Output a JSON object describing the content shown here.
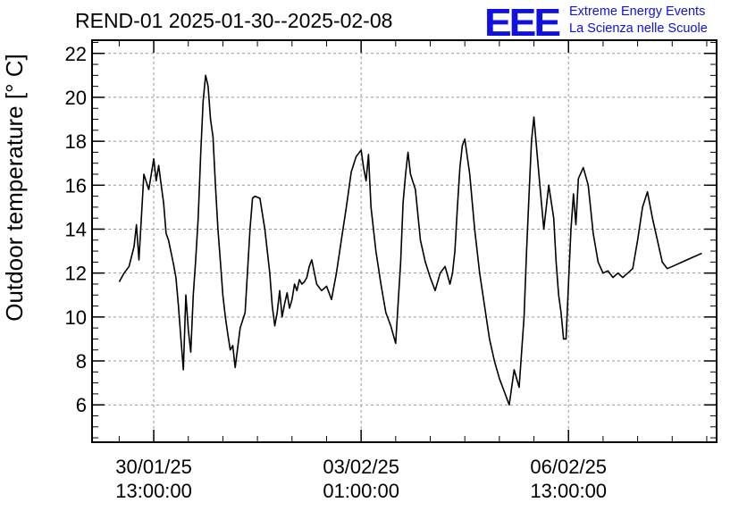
{
  "header": {
    "title": "REND-01 2025-01-30--2025-02-08",
    "logo_text": "EEE",
    "tagline_line1": "Extreme Energy Events",
    "tagline_line2": "La Scienza nelle Scuole"
  },
  "colors": {
    "line": "#000000",
    "grid": "#999999",
    "logo": "#1010e0"
  },
  "chart_data": {
    "type": "line",
    "title": "REND-01 2025-01-30--2025-02-08",
    "xlabel": "",
    "ylabel": "Outdoor temperature [° C]",
    "ylim": [
      4.3,
      22.6
    ],
    "xlim_hours": [
      -25,
      228
    ],
    "yticks": [
      6,
      8,
      10,
      12,
      14,
      16,
      18,
      20,
      22
    ],
    "ytick_labels": [
      "6",
      "8",
      "10",
      "12",
      "14",
      "16",
      "18",
      "20",
      "22"
    ],
    "xticks": [
      {
        "hour": 0,
        "date": "30/01/25",
        "time": "13:00:00"
      },
      {
        "hour": 84,
        "date": "03/02/25",
        "time": "01:00:00"
      },
      {
        "hour": 168,
        "date": "06/02/25",
        "time": "13:00:00"
      }
    ],
    "x_minor_step_hours": 14,
    "grid": true,
    "series": [
      {
        "x_hours": [
          -14,
          -12,
          -10,
          -8,
          -7,
          -6,
          -4,
          -2,
          0,
          1,
          2,
          3,
          4,
          5,
          6,
          8,
          9,
          10,
          11,
          12,
          13,
          14,
          15,
          16,
          17,
          18,
          19,
          20,
          21,
          22,
          23,
          24,
          25,
          26,
          27,
          28,
          29,
          30,
          31,
          32,
          33,
          35,
          37,
          39,
          40,
          41,
          43,
          45,
          47,
          48,
          49,
          50,
          51,
          52,
          53,
          54,
          55,
          56,
          57,
          58,
          59,
          60,
          61,
          62,
          63,
          64,
          66,
          68,
          70,
          72,
          74,
          76,
          78,
          80,
          82,
          84,
          85,
          86,
          87,
          88,
          90,
          92,
          94,
          96,
          98,
          100,
          101,
          102,
          103,
          104,
          106,
          108,
          110,
          112,
          114,
          116,
          118,
          120,
          121,
          122,
          123,
          124,
          125,
          126,
          128,
          130,
          132,
          134,
          136,
          138,
          140,
          142,
          144,
          146,
          148,
          150,
          151,
          152,
          153,
          154,
          156,
          158,
          160,
          162,
          163,
          164,
          165,
          166,
          167,
          168,
          169,
          170,
          171,
          172,
          174,
          176,
          178,
          180,
          182,
          184,
          186,
          188,
          190,
          192,
          194,
          196,
          198,
          200,
          202,
          204,
          206,
          208,
          210,
          212,
          214,
          216,
          218,
          220,
          222
        ],
        "values": [
          11.6,
          12.0,
          12.3,
          13.2,
          14.2,
          12.6,
          16.5,
          15.8,
          17.2,
          16.2,
          16.9,
          16.0,
          15.2,
          13.8,
          13.5,
          12.4,
          11.8,
          10.5,
          9.0,
          7.6,
          11.0,
          9.4,
          8.4,
          11.0,
          12.6,
          14.5,
          17.4,
          19.8,
          21.0,
          20.5,
          19.0,
          18.2,
          16.0,
          14.0,
          12.5,
          11.0,
          10.0,
          9.2,
          8.5,
          8.7,
          7.7,
          9.5,
          10.2,
          14.0,
          15.4,
          15.5,
          15.4,
          14.0,
          12.0,
          10.5,
          9.6,
          10.2,
          11.2,
          10.0,
          10.6,
          11.1,
          10.4,
          10.8,
          11.5,
          11.2,
          11.7,
          11.5,
          11.6,
          11.8,
          12.3,
          12.6,
          11.5,
          11.2,
          11.4,
          10.8,
          12.0,
          13.5,
          15.0,
          16.6,
          17.3,
          17.6,
          16.8,
          16.2,
          17.4,
          15.0,
          13.0,
          11.5,
          10.2,
          9.6,
          8.8,
          12.5,
          15.2,
          16.5,
          17.5,
          16.5,
          15.8,
          13.5,
          12.5,
          11.8,
          11.2,
          12.0,
          12.3,
          11.5,
          12.0,
          13.0,
          15.0,
          16.8,
          17.8,
          18.1,
          16.5,
          14.0,
          12.0,
          10.5,
          9.0,
          8.0,
          7.2,
          6.6,
          6.0,
          7.6,
          6.8,
          10.0,
          13.0,
          15.5,
          18.0,
          19.1,
          16.5,
          14.0,
          16.0,
          14.5,
          12.5,
          11.0,
          10.2,
          9.0,
          9.0,
          11.5,
          14.0,
          15.6,
          14.2,
          16.3,
          16.8,
          16.0,
          13.8,
          12.5,
          12.0,
          12.1,
          11.8,
          12.0,
          11.8,
          12.0,
          12.2,
          13.5,
          15.0,
          15.7,
          14.5,
          13.5,
          12.5,
          12.2,
          12.3,
          12.4,
          12.5,
          12.6,
          12.7,
          12.8,
          12.9
        ]
      }
    ]
  }
}
